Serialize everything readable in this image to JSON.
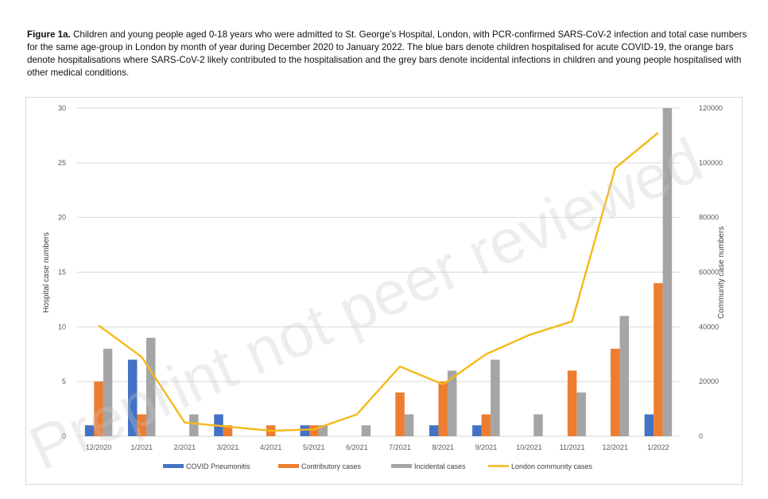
{
  "caption": {
    "label": "Figure 1a.",
    "text": "Children and young people aged 0-18 years who were admitted to St. George’s Hospital, London, with PCR-confirmed SARS-CoV-2 infection and total case numbers for the same age-group in London by month of year during December 2020 to January 2022. The blue bars denote children hospitalised for acute COVID-19, the orange bars denote hospitalisations where SARS-CoV-2 likely contributed to the hospitalisation and the grey bars denote incidental infections in children and young people hospitalised with other medical conditions."
  },
  "watermark": "Preprint not peer reviewed",
  "colors": {
    "covid": "#4472c4",
    "contributory": "#ed7d31",
    "incidental": "#a5a5a5",
    "community": "#f4b919",
    "grid": "#d9d9d9"
  },
  "chart_data": {
    "type": "bar",
    "categories": [
      "12/2020",
      "1/2021",
      "2/2021",
      "3/2021",
      "4/2021",
      "5/2021",
      "6/2021",
      "7/2021",
      "8/2021",
      "9/2021",
      "10/2021",
      "11/2021",
      "12/2021",
      "1/2022"
    ],
    "series": [
      {
        "name": "COVID Pneumonitis",
        "type": "bar",
        "axis": "left",
        "values": [
          1,
          7,
          0,
          2,
          0,
          1,
          0,
          0,
          1,
          1,
          0,
          0,
          0,
          2
        ]
      },
      {
        "name": "Contributory cases",
        "type": "bar",
        "axis": "left",
        "values": [
          5,
          2,
          0,
          1,
          1,
          1,
          0,
          4,
          5,
          2,
          0,
          6,
          8,
          14
        ]
      },
      {
        "name": "Incidental cases",
        "type": "bar",
        "axis": "left",
        "values": [
          8,
          9,
          2,
          0,
          0,
          1,
          1,
          2,
          6,
          7,
          2,
          4,
          11,
          30
        ]
      },
      {
        "name": "London community cases",
        "type": "line",
        "axis": "right",
        "values": [
          40500,
          29000,
          5000,
          3500,
          2000,
          2500,
          8000,
          25500,
          19000,
          30000,
          37000,
          42000,
          98000,
          111000
        ]
      }
    ],
    "ylabel": "Hospital case numbers",
    "y2label": "Community case numbers",
    "ylim": [
      0,
      30
    ],
    "y2lim": [
      0,
      120000
    ],
    "yticks": [
      0,
      5,
      10,
      15,
      20,
      25,
      30
    ],
    "y2ticks": [
      0,
      20000,
      40000,
      60000,
      80000,
      100000,
      120000
    ],
    "grid": true,
    "legend_position": "bottom"
  }
}
